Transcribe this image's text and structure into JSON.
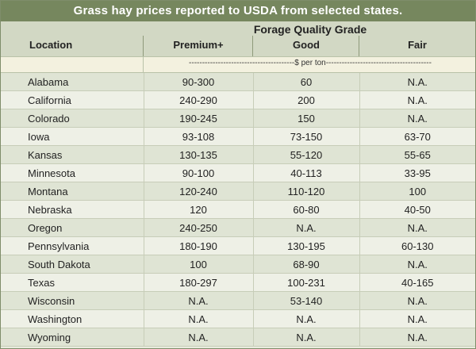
{
  "title": "Grass hay prices reported to USDA from selected states.",
  "header": {
    "location": "Location",
    "grade_group": "Forage Quality Grade",
    "columns": [
      "Premium+",
      "Good",
      "Fair"
    ]
  },
  "units": "----------------------------------------$ per ton----------------------------------------",
  "rows": [
    {
      "location": "Alabama",
      "premium": "90-300",
      "good": "60",
      "fair": "N.A."
    },
    {
      "location": "California",
      "premium": "240-290",
      "good": "200",
      "fair": "N.A."
    },
    {
      "location": "Colorado",
      "premium": "190-245",
      "good": "150",
      "fair": "N.A."
    },
    {
      "location": "Iowa",
      "premium": "93-108",
      "good": "73-150",
      "fair": "63-70"
    },
    {
      "location": "Kansas",
      "premium": "130-135",
      "good": "55-120",
      "fair": "55-65"
    },
    {
      "location": "Minnesota",
      "premium": "90-100",
      "good": "40-113",
      "fair": "33-95"
    },
    {
      "location": "Montana",
      "premium": "120-240",
      "good": "110-120",
      "fair": "100"
    },
    {
      "location": "Nebraska",
      "premium": "120",
      "good": "60-80",
      "fair": "40-50"
    },
    {
      "location": "Oregon",
      "premium": "240-250",
      "good": "N.A.",
      "fair": "N.A."
    },
    {
      "location": "Pennsylvania",
      "premium": "180-190",
      "good": "130-195",
      "fair": "60-130"
    },
    {
      "location": "South Dakota",
      "premium": "100",
      "good": "68-90",
      "fair": "N.A."
    },
    {
      "location": "Texas",
      "premium": "180-297",
      "good": "100-231",
      "fair": "40-165"
    },
    {
      "location": "Wisconsin",
      "premium": "N.A.",
      "good": "53-140",
      "fair": "N.A."
    },
    {
      "location": "Washington",
      "premium": "N.A.",
      "good": "N.A.",
      "fair": "N.A."
    },
    {
      "location": "Wyoming",
      "premium": "N.A.",
      "good": "N.A.",
      "fair": "N.A."
    }
  ]
}
